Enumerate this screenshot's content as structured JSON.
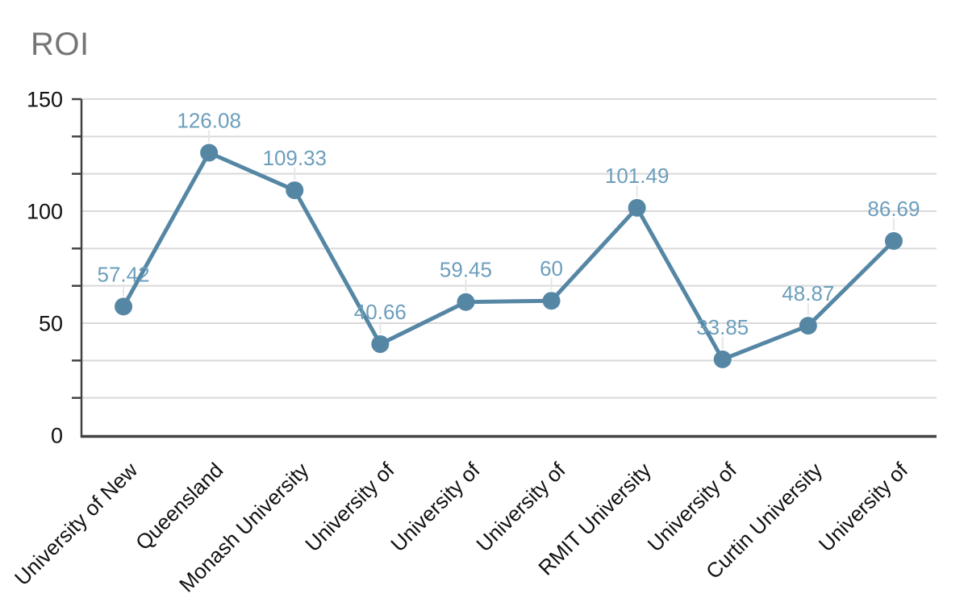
{
  "chart_data": {
    "type": "line",
    "title": "ROI",
    "categories": [
      "University of New",
      "Queensland",
      "Monash University",
      "University of",
      "University of",
      "University of",
      "RMIT University",
      "University of",
      "Curtin University",
      "University of"
    ],
    "series": [
      {
        "name": "ROI",
        "values": [
          57.42,
          126.08,
          109.33,
          40.66,
          59.45,
          60,
          101.49,
          33.85,
          48.87,
          86.69
        ]
      }
    ],
    "point_labels": [
      "57.42",
      "126.08",
      "109.33",
      "40.66",
      "59.45",
      "60",
      "101.49",
      "33.85",
      "48.87",
      "86.69"
    ],
    "y_tick_labels": [
      "150",
      "100",
      "50",
      "0"
    ],
    "y_tick_values": [
      150,
      100,
      50,
      0
    ],
    "ylim": [
      0,
      150
    ],
    "minor_divisions_per_major": 3,
    "grid": "horizontal",
    "legend": "none",
    "xlabel": "",
    "ylabel": "",
    "x_label_rotation_deg": -45,
    "colors": {
      "series_line": "#5587a5",
      "marker": "#5587a5",
      "point_label_text": "#6d9ebc",
      "title_text": "#757575",
      "axis_text": "#111111",
      "gridline": "#d9d9d9",
      "axis_line": "#424242",
      "label_leader": "#e6e6e6",
      "background": "#ffffff"
    }
  }
}
